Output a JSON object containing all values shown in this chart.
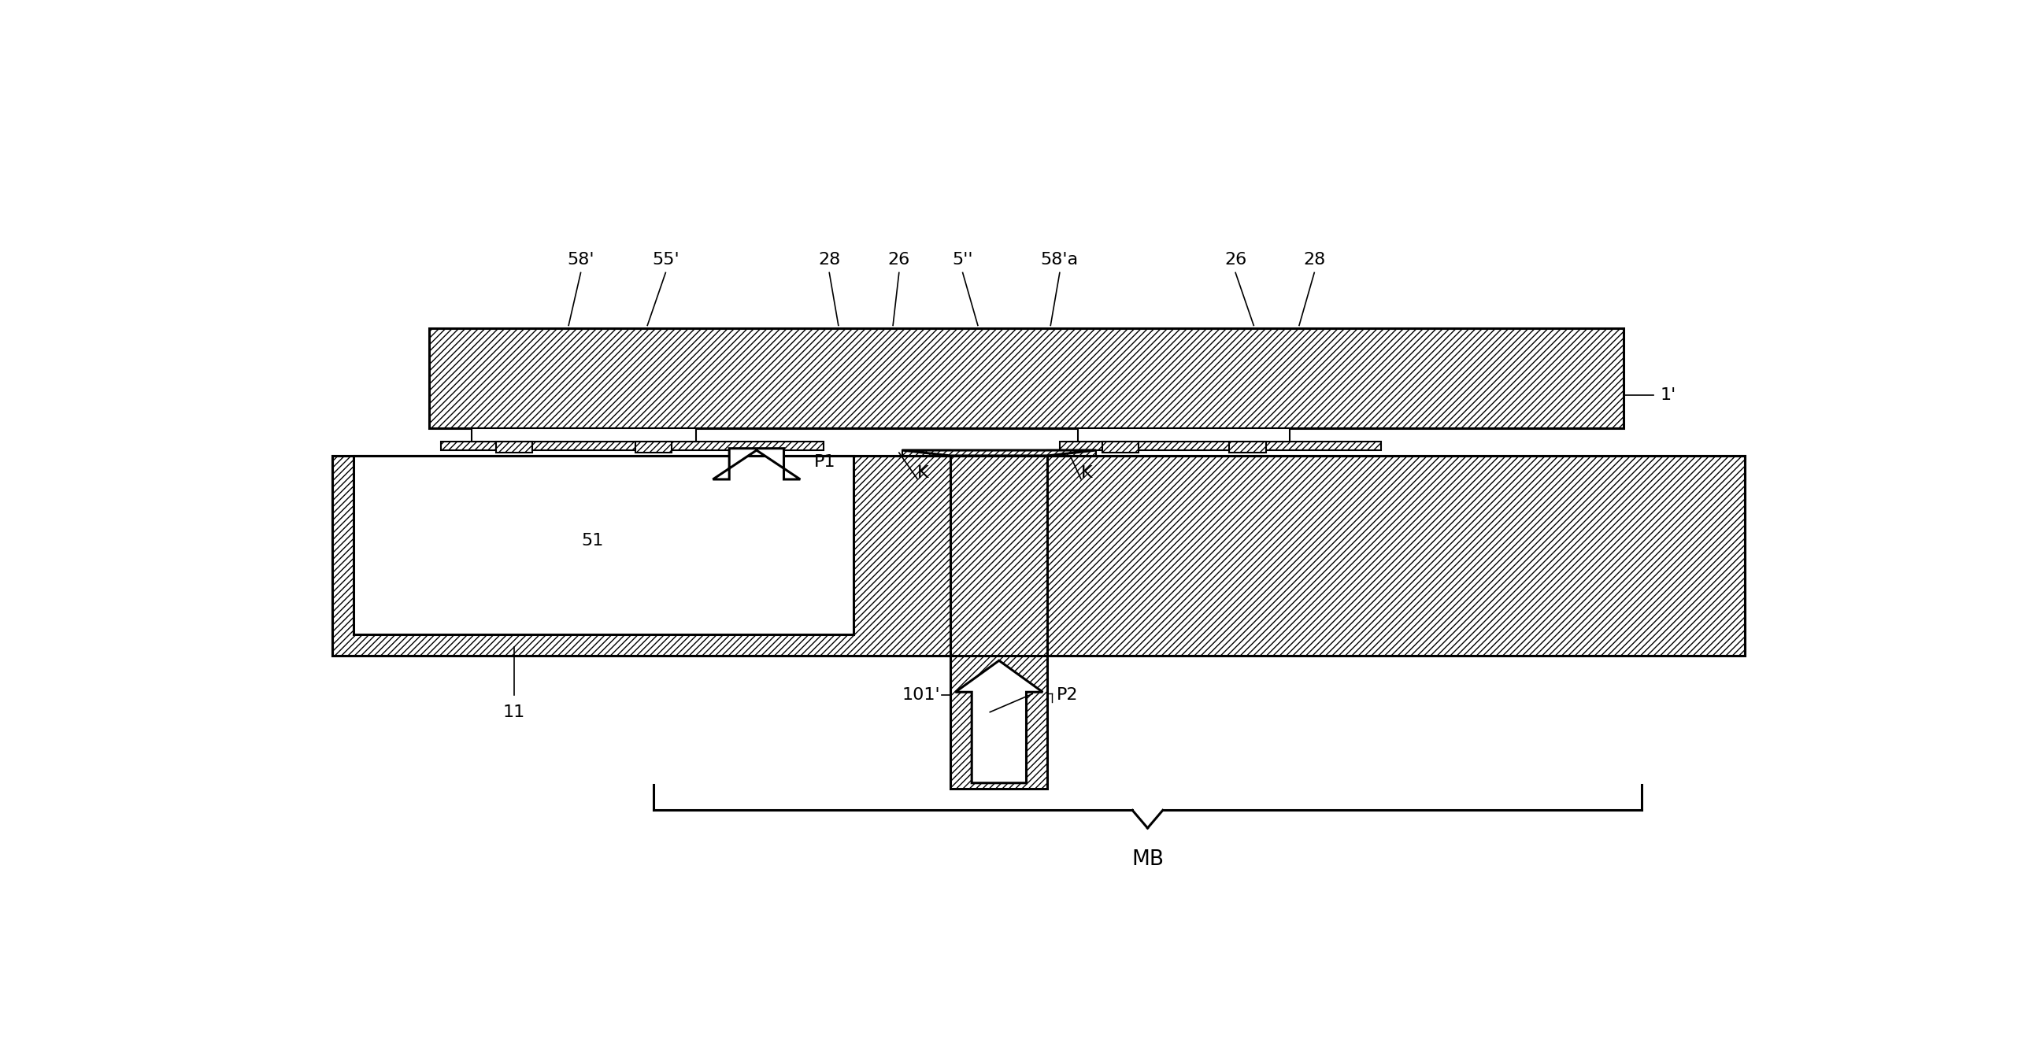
{
  "bg_color": "#ffffff",
  "lc": "#000000",
  "fig_w": 25.96,
  "fig_h": 13.34,
  "labels": {
    "58p": "58'",
    "55": "55'",
    "28L": "28",
    "26L": "26",
    "5pp": "5''",
    "58a": "58'a",
    "26R": "26",
    "28R": "28",
    "1p": "1'",
    "51": "51",
    "P1": "P1",
    "K_left": "K",
    "K_right": "K",
    "11": "11",
    "101p": "101'",
    "P2": "P2",
    "MB": "MB"
  },
  "label_fs": 16,
  "lw_thin": 1.5,
  "lw_main": 2.2
}
